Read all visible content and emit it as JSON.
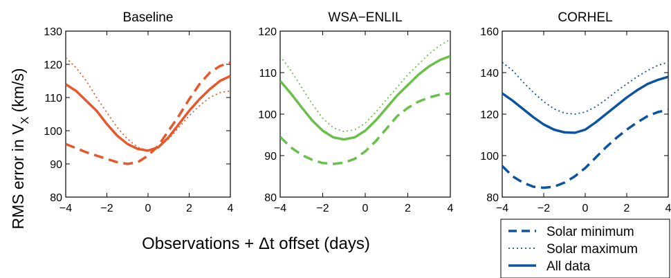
{
  "figure": {
    "ylabel_main": "RMS error in V",
    "ylabel_sub": "X",
    "ylabel_unit": " (km/s)",
    "xlabel": "Observations + Δt offset (days)"
  },
  "legend": {
    "entries": [
      {
        "label": "Solar minimum",
        "style": "dashed"
      },
      {
        "label": "Solar maximum",
        "style": "dotted"
      },
      {
        "label": "All data",
        "style": "solid"
      }
    ],
    "color": "#0b52a0"
  },
  "chart_data": [
    {
      "type": "line",
      "title": "Baseline",
      "color": "#e8562a",
      "xlim": [
        -4,
        4
      ],
      "ylim": [
        80,
        130
      ],
      "xticks": [
        -4,
        -2,
        0,
        2,
        4
      ],
      "yticks": [
        80,
        90,
        100,
        110,
        120,
        130
      ],
      "series": [
        {
          "name": "Solar minimum",
          "style": "dashed",
          "x": [
            -4,
            -3,
            -2,
            -1.5,
            -1,
            -0.5,
            0,
            0.5,
            1,
            1.5,
            2,
            2.5,
            3,
            3.5,
            4
          ],
          "y": [
            96,
            93.5,
            91.5,
            90.5,
            90,
            90.5,
            92.5,
            95.5,
            100,
            104.5,
            109.5,
            114,
            117.5,
            119.5,
            120.5
          ]
        },
        {
          "name": "Solar maximum",
          "style": "dotted",
          "x": [
            -4,
            -3.5,
            -3,
            -2.5,
            -2,
            -1.5,
            -1,
            -0.5,
            0,
            0.5,
            1,
            1.5,
            2,
            2.5,
            3,
            3.5,
            4
          ],
          "y": [
            122,
            119,
            115,
            110,
            105.5,
            101,
            97.5,
            95,
            94,
            95,
            97.5,
            101,
            104.5,
            107.5,
            110,
            111.5,
            112
          ]
        },
        {
          "name": "All data",
          "style": "solid",
          "x": [
            -4,
            -3.5,
            -3,
            -2.5,
            -2,
            -1.5,
            -1,
            -0.5,
            0,
            0.5,
            1,
            1.5,
            2,
            2.5,
            3,
            3.5,
            4
          ],
          "y": [
            114,
            112,
            109,
            106,
            102,
            98.5,
            96,
            94.5,
            94,
            95,
            98,
            102,
            106,
            109.5,
            112.5,
            115,
            116.5
          ]
        }
      ]
    },
    {
      "type": "line",
      "title": "WSA−ENLIL",
      "color": "#6abf4b",
      "xlim": [
        -4,
        4
      ],
      "ylim": [
        80,
        120
      ],
      "xticks": [
        -4,
        -2,
        0,
        2,
        4
      ],
      "yticks": [
        80,
        90,
        100,
        110,
        120
      ],
      "series": [
        {
          "name": "Solar minimum",
          "style": "dashed",
          "x": [
            -4,
            -3.5,
            -3,
            -2.5,
            -2,
            -1.5,
            -1,
            -0.5,
            0,
            0.5,
            1,
            1.5,
            2,
            2.5,
            3,
            3.5,
            4
          ],
          "y": [
            94.5,
            92,
            90.2,
            89,
            88.2,
            88,
            88.3,
            89.2,
            91,
            93.5,
            96.5,
            99.5,
            101.5,
            103,
            104,
            104.7,
            105
          ]
        },
        {
          "name": "Solar maximum",
          "style": "dotted",
          "x": [
            -4,
            -3.5,
            -3,
            -2.5,
            -2,
            -1.5,
            -1,
            -0.5,
            0,
            0.5,
            1,
            1.5,
            2,
            2.5,
            3,
            3.5,
            4
          ],
          "y": [
            114,
            110.5,
            106.5,
            102.5,
            99,
            96.7,
            95.8,
            96.2,
            97.8,
            100.5,
            103.5,
            106.5,
            109.5,
            112,
            114.5,
            116.5,
            118
          ]
        },
        {
          "name": "All data",
          "style": "solid",
          "x": [
            -4,
            -3.5,
            -3,
            -2.5,
            -2,
            -1.5,
            -1,
            -0.5,
            0,
            0.5,
            1,
            1.5,
            2,
            2.5,
            3,
            3.5,
            4
          ],
          "y": [
            108,
            105,
            101.7,
            98.5,
            96,
            94.4,
            93.9,
            94.4,
            96,
            98.5,
            101.5,
            104.5,
            107,
            109.5,
            111.5,
            113,
            114
          ]
        }
      ]
    },
    {
      "type": "line",
      "title": "CORHEL",
      "color": "#0b52a0",
      "xlim": [
        -4,
        4
      ],
      "ylim": [
        80,
        160
      ],
      "xticks": [
        -4,
        -2,
        0,
        2,
        4
      ],
      "yticks": [
        80,
        100,
        120,
        140,
        160
      ],
      "series": [
        {
          "name": "Solar minimum",
          "style": "dashed",
          "x": [
            -4,
            -3.5,
            -3,
            -2.5,
            -2,
            -1.5,
            -1,
            -0.5,
            0,
            0.5,
            1,
            1.5,
            2,
            2.5,
            3,
            3.5,
            4
          ],
          "y": [
            95,
            90,
            87,
            85,
            84.5,
            85,
            87,
            90,
            94,
            99,
            104,
            108.5,
            112.5,
            116,
            119,
            121,
            122
          ]
        },
        {
          "name": "Solar maximum",
          "style": "dotted",
          "x": [
            -4,
            -3.5,
            -3,
            -2.5,
            -2,
            -1.5,
            -1,
            -0.5,
            0,
            0.5,
            1,
            1.5,
            2,
            2.5,
            3,
            3.5,
            4
          ],
          "y": [
            145,
            141,
            135.5,
            130.5,
            126,
            122.5,
            120.5,
            120,
            121,
            123.5,
            127,
            131,
            134.5,
            138,
            141,
            143.5,
            145
          ]
        },
        {
          "name": "All data",
          "style": "solid",
          "x": [
            -4,
            -3.5,
            -3,
            -2.5,
            -2,
            -1.5,
            -1,
            -0.5,
            0,
            0.5,
            1,
            1.5,
            2,
            2.5,
            3,
            3.5,
            4
          ],
          "y": [
            130,
            126.5,
            122.5,
            118.5,
            115,
            112.5,
            111.2,
            111,
            112.5,
            116,
            120,
            124,
            128,
            131.5,
            134.5,
            136.5,
            138
          ]
        }
      ]
    }
  ]
}
